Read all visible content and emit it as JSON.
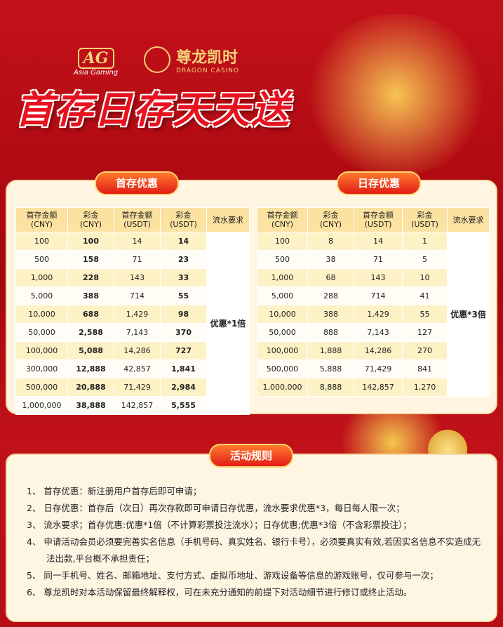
{
  "header": {
    "brand1": {
      "logo": "AG",
      "name": "Asia Gaming"
    },
    "brand2": {
      "name": "尊龙凯时",
      "subtitle": "DRAGON CASINO"
    },
    "title": "首存日存天天送"
  },
  "tables": [
    {
      "label": "首存优惠",
      "columns": [
        {
          "name": "首存金额",
          "unit": "(CNY)"
        },
        {
          "name": "彩金",
          "unit": "(CNY)"
        },
        {
          "name": "首存金额",
          "unit": "(USDT)"
        },
        {
          "name": "彩金",
          "unit": "(USDT)"
        },
        {
          "name": "流水要求"
        }
      ],
      "rows": [
        [
          "100",
          "100",
          "14",
          "14"
        ],
        [
          "500",
          "158",
          "71",
          "23"
        ],
        [
          "1,000",
          "228",
          "143",
          "33"
        ],
        [
          "5,000",
          "388",
          "714",
          "55"
        ],
        [
          "10,000",
          "688",
          "1,429",
          "98"
        ],
        [
          "50,000",
          "2,588",
          "7,143",
          "370"
        ],
        [
          "100,000",
          "5,088",
          "14,286",
          "727"
        ],
        [
          "300,000",
          "12,888",
          "42,857",
          "1,841"
        ],
        [
          "500,000",
          "20,888",
          "71,429",
          "2,984"
        ],
        [
          "1,000,000",
          "38,888",
          "142,857",
          "5,555"
        ]
      ],
      "requirement": "优惠*1倍"
    },
    {
      "label": "日存优惠",
      "columns": [
        {
          "name": "首存金额",
          "unit": "(CNY)"
        },
        {
          "name": "彩金",
          "unit": "(CNY)"
        },
        {
          "name": "首存金额",
          "unit": "(USDT)"
        },
        {
          "name": "彩金",
          "unit": "(USDT)"
        },
        {
          "name": "流水要求"
        }
      ],
      "rows": [
        [
          "100",
          "8",
          "14",
          "1"
        ],
        [
          "500",
          "38",
          "71",
          "5"
        ],
        [
          "1,000",
          "68",
          "143",
          "10"
        ],
        [
          "5,000",
          "288",
          "714",
          "41"
        ],
        [
          "10,000",
          "388",
          "1,429",
          "55"
        ],
        [
          "50,000",
          "888",
          "7,143",
          "127"
        ],
        [
          "100,000",
          "1,888",
          "14,286",
          "270"
        ],
        [
          "500,000",
          "5,888",
          "71,429",
          "841"
        ],
        [
          "1,000,000",
          "8,888",
          "142,857",
          "1,270"
        ]
      ],
      "requirement": "优惠*3倍"
    }
  ],
  "rules": {
    "title": "活动规则",
    "items": [
      "1、 首存优惠：新注册用户首存后即可申请；",
      "2、 日存优惠：首存后（次日）再次存款即可申请日存优惠，流水要求优惠*3，每日每人限一次；",
      "3、 流水要求；首存优惠:优惠*1倍（不计算彩票投注流水）；日存优惠;优惠*3倍（不含彩票投注）；",
      "4、 申请活动会员必须要完善实名信息（手机号码、真实姓名、银行卡号），必须要真实有效,若因实名信息不实造成无法出款,平台概不承担责任；",
      "5、 同一手机号、姓名、邮箱地址、支付方式、虚拟币地址、游戏设备等信息的游戏账号，仅可参与一次；",
      "6、 尊龙凯时对本活动保留最终解释权，可在未充分通知的前提下对活动细节进行修订或终止活动。"
    ]
  }
}
